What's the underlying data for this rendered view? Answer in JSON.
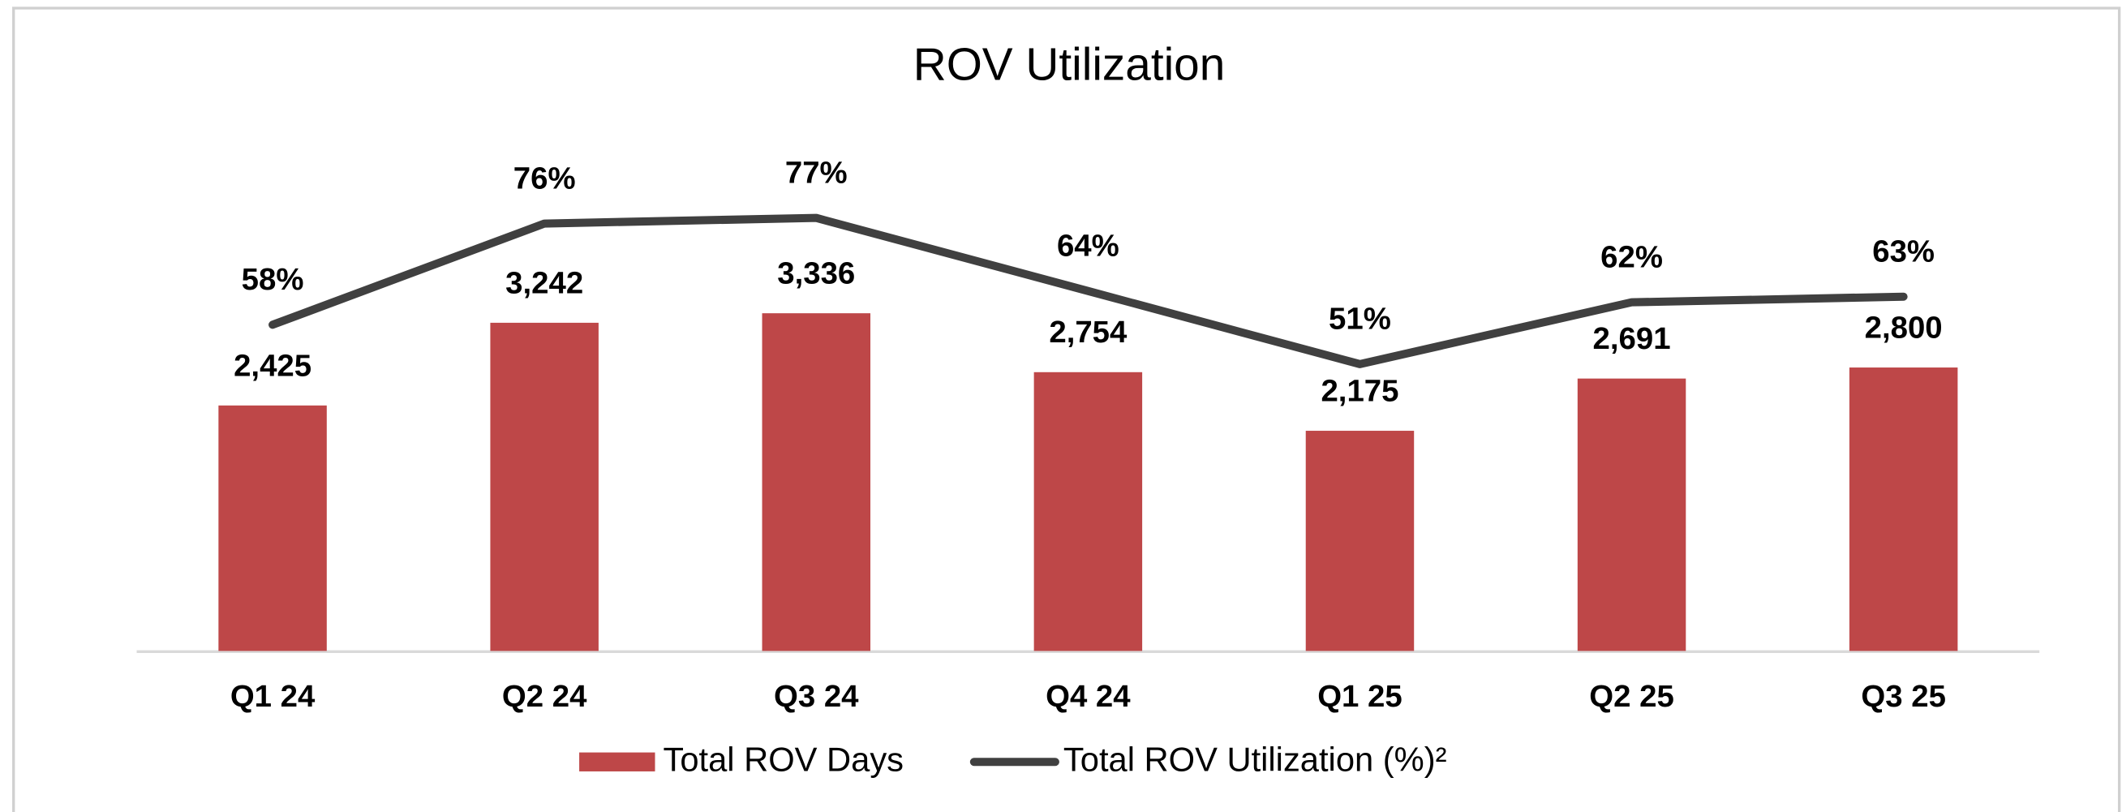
{
  "chart_data": {
    "type": "bar",
    "title": "ROV Utilization",
    "categories": [
      "Q1 24",
      "Q2 24",
      "Q3 24",
      "Q4 24",
      "Q1 25",
      "Q2 25",
      "Q3 25"
    ],
    "series": [
      {
        "name": "Total ROV Days",
        "type": "bar",
        "color": "#be4748",
        "values": [
          2425,
          3242,
          3336,
          2754,
          2175,
          2691,
          2800
        ],
        "value_labels": [
          "2,425",
          "3,242",
          "3,336",
          "2,754",
          "2,175",
          "2,691",
          "2,800"
        ]
      },
      {
        "name": "Total ROV Utilization (%)²",
        "type": "line",
        "axis": "y2",
        "color": "#404040",
        "values": [
          58,
          76,
          77,
          64,
          51,
          62,
          63
        ],
        "value_labels": [
          "58%",
          "76%",
          "77%",
          "64%",
          "51%",
          "62%",
          "63%"
        ]
      }
    ],
    "ylim": [
      0,
      5000
    ],
    "y2lim": [
      0,
      90
    ],
    "grid": false,
    "legend": "bottom"
  }
}
